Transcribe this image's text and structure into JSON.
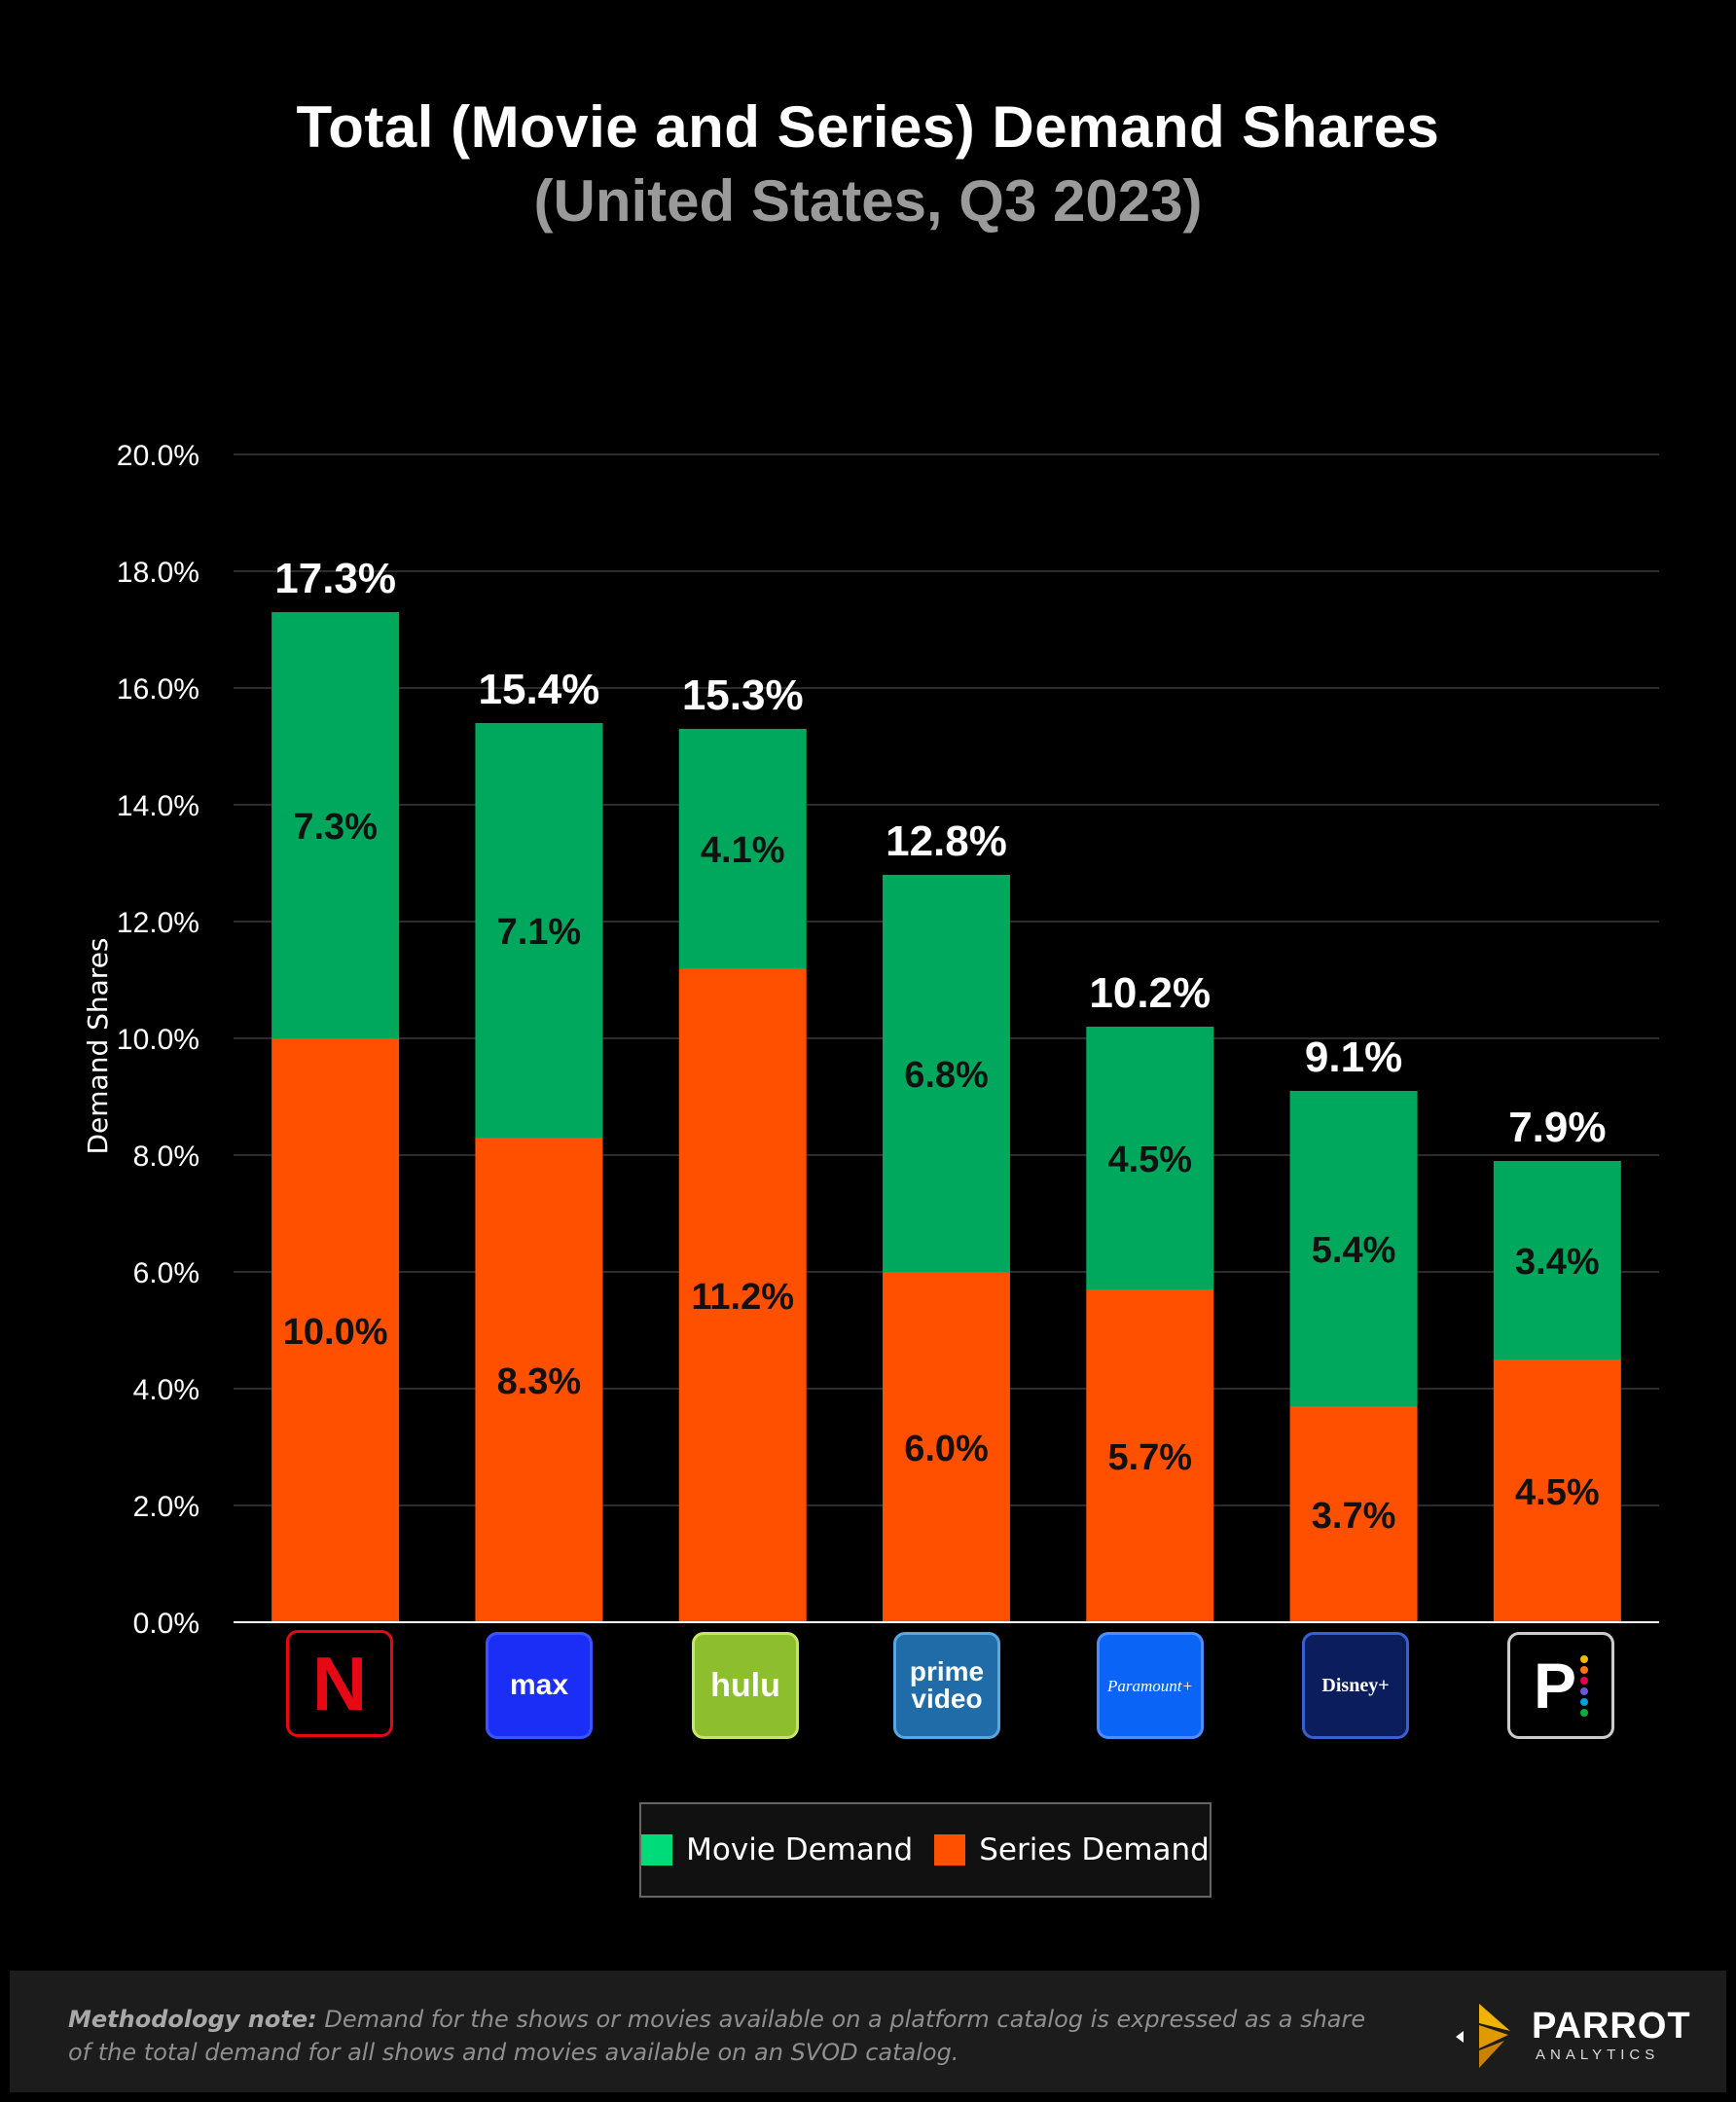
{
  "header": {
    "title": "Total (Movie and Series) Demand Shares",
    "subtitle": "(United States, Q3 2023)"
  },
  "chart_data": {
    "type": "bar",
    "stacked": true,
    "title": "Total (Movie and Series) Demand Shares",
    "subtitle": "(United States, Q3 2023)",
    "ylabel": "Demand Shares",
    "xlabel": "",
    "ylim": [
      0,
      20
    ],
    "yticks": [
      "0.0%",
      "2.0%",
      "4.0%",
      "6.0%",
      "8.0%",
      "10.0%",
      "12.0%",
      "14.0%",
      "16.0%",
      "18.0%",
      "20.0%"
    ],
    "grid": true,
    "legend_position": "bottom",
    "categories": [
      "Netflix",
      "Max",
      "Hulu",
      "Prime Video",
      "Paramount+",
      "Disney+",
      "Peacock"
    ],
    "series": [
      {
        "name": "Series Demand",
        "color": "#FF5000",
        "values": [
          10.0,
          8.3,
          11.2,
          6.0,
          5.7,
          3.7,
          4.5
        ],
        "labels": [
          "10.0%",
          "8.3%",
          "11.2%",
          "6.0%",
          "5.7%",
          "3.7%",
          "4.5%"
        ]
      },
      {
        "name": "Movie Demand",
        "color": "#00A85E",
        "values": [
          7.3,
          7.1,
          4.1,
          6.8,
          4.5,
          5.4,
          3.4
        ],
        "labels": [
          "7.3%",
          "7.1%",
          "4.1%",
          "6.8%",
          "4.5%",
          "5.4%",
          "3.4%"
        ]
      }
    ],
    "totals": [
      17.3,
      15.4,
      15.3,
      12.8,
      10.2,
      9.1,
      7.9
    ],
    "total_labels": [
      "17.3%",
      "15.4%",
      "15.3%",
      "12.8%",
      "10.2%",
      "9.1%",
      "7.9%"
    ]
  },
  "logos": [
    {
      "name": "netflix-logo",
      "text": "N"
    },
    {
      "name": "max-logo",
      "text": "max"
    },
    {
      "name": "hulu-logo",
      "text": "hulu"
    },
    {
      "name": "prime-video-logo",
      "text": "prime video"
    },
    {
      "name": "paramount-plus-logo",
      "text": "Paramount+"
    },
    {
      "name": "disney-plus-logo",
      "text": "Disney+"
    },
    {
      "name": "peacock-logo",
      "text": "P"
    }
  ],
  "legend": {
    "movie": {
      "label": "Movie Demand",
      "color": "#00DB7A"
    },
    "series": {
      "label": "Series Demand",
      "color": "#FF5000"
    }
  },
  "footer": {
    "methodology_label": "Methodology note:",
    "methodology_text": "Demand for the shows or movies available on a platform catalog is expressed as a share of the total demand for all shows and movies available on an SVOD catalog.",
    "brand_name": "PARROT",
    "brand_sub": "ANALYTICS"
  }
}
